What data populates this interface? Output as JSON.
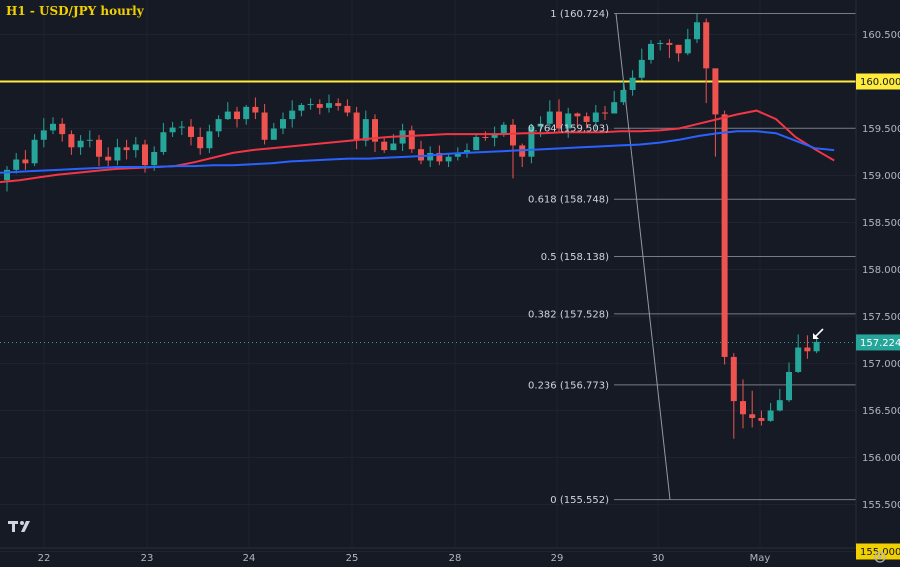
{
  "chart_data": {
    "type": "candlestick",
    "title": "H1 - USD/JPY hourly",
    "symbol": "USD/JPY",
    "timeframe": "H1",
    "ylim": [
      155.0,
      160.85
    ],
    "x_tick_labels": [
      "22",
      "23",
      "24",
      "25",
      "28",
      "29",
      "30",
      "May"
    ],
    "y_tick_labels": [
      "160.500",
      "159.500",
      "159.000",
      "158.500",
      "158.000",
      "157.500",
      "157.000",
      "156.500",
      "156.000",
      "155.500",
      "155.000"
    ],
    "y_tick_values": [
      160.5,
      159.5,
      159.0,
      158.5,
      158.0,
      157.5,
      157.0,
      156.5,
      156.0,
      155.5,
      155.0
    ],
    "horizontal_level": {
      "value": 160.0,
      "label": "160.000",
      "color": "#ffeb3b"
    },
    "last_price": {
      "value": 157.224,
      "label": "157.224",
      "color": "#26a69a"
    },
    "fibonacci": [
      {
        "ratio": "1",
        "price": 160.724,
        "label": "1 (160.724)"
      },
      {
        "ratio": "0.764",
        "price": 159.503,
        "label": "0.764 (159.503)"
      },
      {
        "ratio": "0.618",
        "price": 158.748,
        "label": "0.618 (158.748)"
      },
      {
        "ratio": "0.5",
        "price": 158.138,
        "label": "0.5 (158.138)"
      },
      {
        "ratio": "0.382",
        "price": 157.528,
        "label": "0.382 (157.528)"
      },
      {
        "ratio": "0.236",
        "price": 156.773,
        "label": "0.236 (156.773)"
      },
      {
        "ratio": "0",
        "price": 155.552,
        "label": "0 (155.552)"
      }
    ],
    "moving_averages": [
      {
        "color": "#f23645",
        "values": [
          158.93,
          158.95,
          158.98,
          159.01,
          159.03,
          159.05,
          159.07,
          159.08,
          159.09,
          159.1,
          159.14,
          159.19,
          159.24,
          159.27,
          159.29,
          159.31,
          159.33,
          159.35,
          159.37,
          159.39,
          159.41,
          159.42,
          159.43,
          159.44,
          159.44,
          159.44,
          159.44,
          159.45,
          159.45,
          159.46,
          159.46,
          159.46,
          159.47,
          159.47,
          159.48,
          159.5,
          159.55,
          159.6,
          159.65,
          159.69,
          159.6,
          159.41,
          159.28,
          159.16
        ]
      },
      {
        "color": "#2962ff",
        "values": [
          159.03,
          159.04,
          159.05,
          159.06,
          159.07,
          159.08,
          159.09,
          159.09,
          159.09,
          159.1,
          159.1,
          159.11,
          159.11,
          159.12,
          159.13,
          159.15,
          159.16,
          159.17,
          159.18,
          159.18,
          159.19,
          159.2,
          159.21,
          159.23,
          159.24,
          159.25,
          159.26,
          159.27,
          159.28,
          159.29,
          159.3,
          159.31,
          159.32,
          159.33,
          159.35,
          159.38,
          159.42,
          159.45,
          159.47,
          159.47,
          159.45,
          159.37,
          159.29,
          159.27
        ]
      }
    ],
    "candles": [
      [
        158.95,
        159.06,
        159.1,
        158.83
      ],
      [
        159.06,
        159.17,
        159.24,
        159.02
      ],
      [
        159.17,
        159.13,
        159.27,
        159.06
      ],
      [
        159.13,
        159.38,
        159.44,
        159.1
      ],
      [
        159.38,
        159.48,
        159.61,
        159.3
      ],
      [
        159.48,
        159.55,
        159.62,
        159.44
      ],
      [
        159.55,
        159.44,
        159.61,
        159.36
      ],
      [
        159.44,
        159.3,
        159.48,
        159.22
      ],
      [
        159.3,
        159.37,
        159.43,
        159.22
      ],
      [
        159.37,
        159.38,
        159.48,
        159.3
      ],
      [
        159.38,
        159.2,
        159.43,
        159.1
      ],
      [
        159.2,
        159.16,
        159.3,
        159.1
      ],
      [
        159.16,
        159.3,
        159.39,
        159.11
      ],
      [
        159.3,
        159.27,
        159.38,
        159.17
      ],
      [
        159.27,
        159.33,
        159.41,
        159.19
      ],
      [
        159.33,
        159.11,
        159.38,
        159.03
      ],
      [
        159.11,
        159.25,
        159.31,
        159.05
      ],
      [
        159.25,
        159.46,
        159.56,
        159.22
      ],
      [
        159.46,
        159.51,
        159.57,
        159.41
      ],
      [
        159.51,
        159.52,
        159.58,
        159.43
      ],
      [
        159.52,
        159.41,
        159.6,
        159.32
      ],
      [
        159.41,
        159.29,
        159.51,
        159.22
      ],
      [
        159.29,
        159.47,
        159.54,
        159.24
      ],
      [
        159.47,
        159.6,
        159.64,
        159.41
      ],
      [
        159.6,
        159.68,
        159.78,
        159.59
      ],
      [
        159.68,
        159.6,
        159.73,
        159.51
      ],
      [
        159.6,
        159.73,
        159.75,
        159.54
      ],
      [
        159.73,
        159.67,
        159.83,
        159.6
      ],
      [
        159.67,
        159.38,
        159.76,
        159.33
      ],
      [
        159.38,
        159.5,
        159.56,
        159.38
      ],
      [
        159.5,
        159.6,
        159.67,
        159.44
      ],
      [
        159.6,
        159.69,
        159.8,
        159.51
      ],
      [
        159.69,
        159.75,
        159.77,
        159.63
      ],
      [
        159.75,
        159.76,
        159.82,
        159.7
      ],
      [
        159.76,
        159.72,
        159.81,
        159.65
      ],
      [
        159.72,
        159.77,
        159.86,
        159.67
      ],
      [
        159.77,
        159.74,
        159.82,
        159.69
      ],
      [
        159.74,
        159.67,
        159.81,
        159.63
      ],
      [
        159.67,
        159.37,
        159.73,
        159.28
      ],
      [
        159.37,
        159.6,
        159.69,
        159.31
      ],
      [
        159.6,
        159.36,
        159.65,
        159.25
      ],
      [
        159.36,
        159.27,
        159.41,
        159.24
      ],
      [
        159.27,
        159.34,
        159.44,
        159.27
      ],
      [
        159.34,
        159.48,
        159.55,
        159.26
      ],
      [
        159.48,
        159.28,
        159.53,
        159.24
      ],
      [
        159.28,
        159.16,
        159.37,
        159.12
      ],
      [
        159.16,
        159.24,
        159.31,
        159.09
      ],
      [
        159.24,
        159.15,
        159.32,
        159.11
      ],
      [
        159.15,
        159.2,
        159.24,
        159.09
      ],
      [
        159.2,
        159.24,
        159.3,
        159.16
      ],
      [
        159.24,
        159.27,
        159.34,
        159.19
      ],
      [
        159.27,
        159.41,
        159.45,
        159.27
      ],
      [
        159.41,
        159.4,
        159.47,
        159.37
      ],
      [
        159.4,
        159.45,
        159.52,
        159.31
      ],
      [
        159.45,
        159.54,
        159.57,
        159.41
      ],
      [
        159.54,
        159.32,
        159.6,
        158.97
      ],
      [
        159.32,
        159.2,
        159.34,
        159.09
      ],
      [
        159.2,
        159.52,
        159.55,
        159.13
      ],
      [
        159.52,
        159.55,
        159.63,
        159.41
      ],
      [
        159.55,
        159.68,
        159.8,
        159.49
      ],
      [
        159.68,
        159.5,
        159.81,
        159.46
      ],
      [
        159.5,
        159.66,
        159.72,
        159.4
      ],
      [
        159.66,
        159.63,
        159.67,
        159.51
      ],
      [
        159.63,
        159.57,
        159.67,
        159.5
      ],
      [
        159.57,
        159.67,
        159.75,
        159.49
      ],
      [
        159.67,
        159.66,
        159.74,
        159.59
      ],
      [
        159.66,
        159.78,
        159.9,
        159.67
      ],
      [
        159.78,
        159.91,
        160.02,
        159.75
      ],
      [
        159.91,
        160.04,
        160.12,
        159.85
      ],
      [
        160.04,
        160.23,
        160.35,
        160.01
      ],
      [
        160.23,
        160.4,
        160.44,
        160.19
      ],
      [
        160.4,
        160.41,
        160.44,
        160.33
      ],
      [
        160.41,
        160.39,
        160.45,
        160.25
      ],
      [
        160.39,
        160.3,
        160.39,
        160.21
      ],
      [
        160.3,
        160.45,
        160.56,
        160.28
      ],
      [
        160.45,
        160.63,
        160.72,
        160.41
      ],
      [
        160.63,
        160.14,
        160.67,
        159.77
      ],
      [
        160.14,
        159.65,
        160.09,
        159.2
      ],
      [
        159.65,
        157.07,
        159.69,
        156.99
      ],
      [
        157.07,
        156.6,
        157.11,
        156.2
      ],
      [
        156.6,
        156.46,
        156.83,
        156.31
      ],
      [
        156.46,
        156.42,
        156.71,
        156.32
      ],
      [
        156.42,
        156.39,
        156.5,
        156.34
      ],
      [
        156.39,
        156.5,
        156.58,
        156.38
      ],
      [
        156.5,
        156.61,
        156.73,
        156.49
      ],
      [
        156.61,
        156.91,
        157.01,
        156.59
      ],
      [
        156.91,
        157.17,
        157.31,
        156.9
      ],
      [
        157.17,
        157.13,
        157.3,
        157.05
      ],
      [
        157.13,
        157.23,
        157.28,
        157.11
      ]
    ]
  },
  "branding": {
    "logo_text": "TV"
  }
}
